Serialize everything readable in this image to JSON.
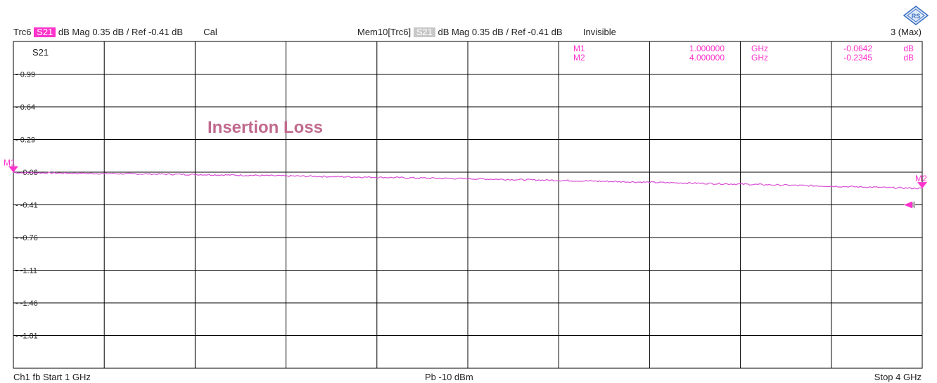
{
  "header": {
    "trace_name": "Trc6",
    "trace_param": "S21",
    "trace_format": "dB Mag",
    "trace_scale": "0.35 dB /",
    "trace_ref": "Ref -0.41 dB",
    "trace_cal": "Cal",
    "mem_name": "Mem10[Trc6]",
    "mem_param": "S21",
    "mem_format": "dB Mag",
    "mem_scale": "0.35 dB /",
    "mem_ref": "Ref -0.41 dB",
    "mem_state": "Invisible",
    "divisions": "3 (Max)"
  },
  "footer": {
    "channel": "Ch1",
    "mode": "fb",
    "start": "Start 1 GHz",
    "power": "Pb  -10 dBm",
    "stop": "Stop 4 GHz"
  },
  "colors": {
    "trace": "#d94fd4",
    "marker": "#ff33cc",
    "annotation": "#c06a8e",
    "memory": "#b0b0b0"
  },
  "markers": [
    {
      "name": "M1",
      "value": "1.000000",
      "unit": "GHz",
      "reading": "-0.0642",
      "reading_unit": "dB"
    },
    {
      "name": "M2",
      "value": "4.000000",
      "unit": "GHz",
      "reading": "-0.2345",
      "reading_unit": "dB"
    }
  ],
  "chart_data": {
    "type": "line",
    "trace_label": "S21",
    "annotation": "Insertion Loss",
    "xlim": [
      1,
      4
    ],
    "x_unit": "GHz",
    "ylim": [
      -2.16,
      1.34
    ],
    "y_ticks": [
      0.99,
      0.64,
      0.29,
      -0.06,
      -0.41,
      -0.76,
      -1.11,
      -1.46,
      -1.81
    ],
    "y_tick_labels": [
      "0.99",
      "0.64",
      "0.29",
      "-0.06",
      "-0.41",
      "-0.76",
      "-1.11",
      "-1.46",
      "-1.81"
    ],
    "grid": true,
    "x_divisions": 10,
    "y_divisions": 10,
    "reference_level": -0.41,
    "series": [
      {
        "x": [
          1.0,
          1.3,
          1.6,
          1.9,
          2.2,
          2.5,
          2.8,
          3.1,
          3.4,
          3.7,
          4.0
        ],
        "values": [
          -0.064,
          -0.075,
          -0.085,
          -0.1,
          -0.115,
          -0.13,
          -0.148,
          -0.168,
          -0.188,
          -0.21,
          -0.2345
        ]
      }
    ]
  }
}
